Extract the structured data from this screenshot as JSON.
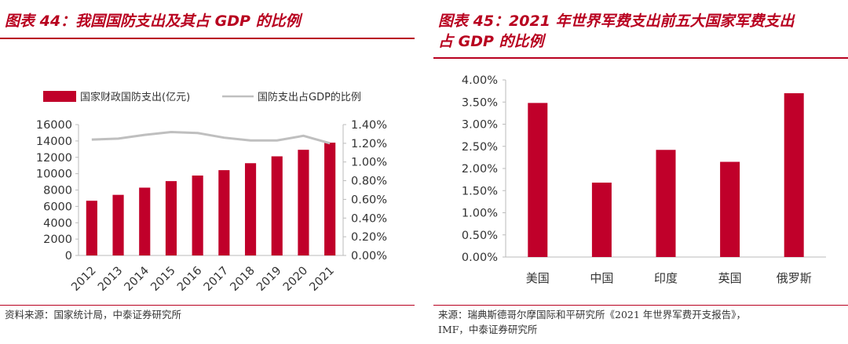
{
  "left": {
    "title": "图表 44：我国国防支出及其占 GDP 的比例",
    "source": "资料来源：国家统计局，中泰证券研究所"
  },
  "right": {
    "title_line1": "图表 45：2021 年世界军费支出前五大国家军费支出",
    "title_line2": "占 GDP 的比例",
    "source_line1": "来源：瑞典斯德哥尔摩国际和平研究所《2021 年世界军费开支报告》，",
    "source_line2": "IMF，中泰证券研究所"
  },
  "colors": {
    "bar": "#c0002a",
    "line": "#bfbfbf",
    "accent": "#b8001f"
  },
  "chart_data": [
    {
      "type": "bar",
      "categories": [
        "2012",
        "2013",
        "2014",
        "2015",
        "2016",
        "2017",
        "2018",
        "2019",
        "2020",
        "2021"
      ],
      "series": [
        {
          "name": "国家财政国防支出(亿元)",
          "type": "bar",
          "axis": "left",
          "values": [
            6690,
            7410,
            8290,
            9090,
            9770,
            10430,
            11280,
            12120,
            12920,
            13790
          ]
        },
        {
          "name": "国防支出占GDP的比例",
          "type": "line",
          "axis": "right",
          "values": [
            1.24,
            1.25,
            1.29,
            1.32,
            1.31,
            1.26,
            1.23,
            1.23,
            1.28,
            1.2
          ]
        }
      ],
      "y_left": {
        "min": 0,
        "max": 16000,
        "ticks": [
          "0",
          "2000",
          "4000",
          "6000",
          "8000",
          "10000",
          "12000",
          "14000",
          "16000"
        ]
      },
      "y_right": {
        "min": 0,
        "max": 1.4,
        "ticks": [
          "0.00%",
          "0.20%",
          "0.40%",
          "0.60%",
          "0.80%",
          "1.00%",
          "1.20%",
          "1.40%"
        ]
      },
      "legend": "top",
      "grid": false
    },
    {
      "type": "bar",
      "categories": [
        "美国",
        "中国",
        "印度",
        "英国",
        "俄罗斯"
      ],
      "values": [
        3.48,
        1.68,
        2.42,
        2.15,
        3.7
      ],
      "y": {
        "min": 0,
        "max": 4.0,
        "ticks": [
          "0.00%",
          "0.50%",
          "1.00%",
          "1.50%",
          "2.00%",
          "2.50%",
          "3.00%",
          "3.50%",
          "4.00%"
        ]
      },
      "legend": "none",
      "grid": false
    }
  ]
}
